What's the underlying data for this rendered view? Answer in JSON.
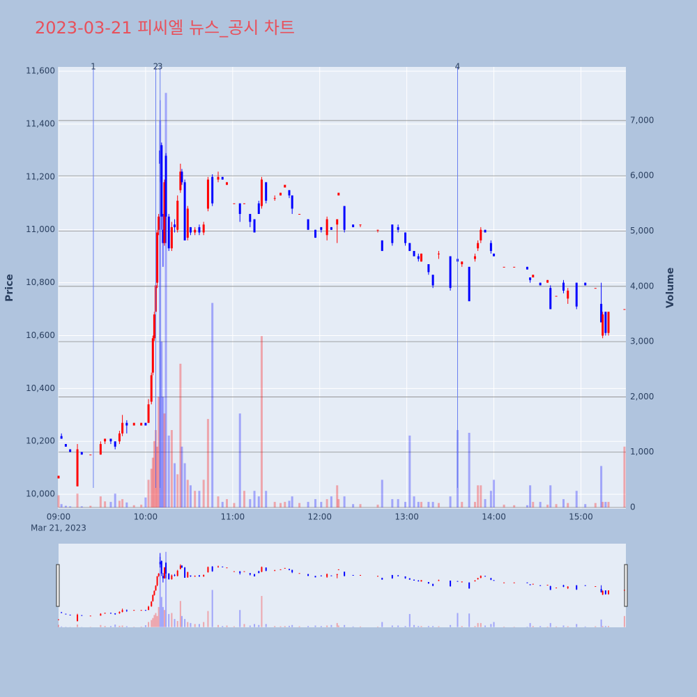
{
  "chart_data": {
    "type": "candlestick",
    "title": "2023-03-21 피씨엘 뉴스_공시 차트",
    "y_title": "Price",
    "y2_title": "Volume",
    "x_date_label": "Mar 21, 2023",
    "increasing_color": "#ff0000",
    "decreasing_color": "#0000ff",
    "marker_color": "#6a7ff0",
    "grid": true,
    "xlim": [
      "2023-03-21 09:00",
      "2023-03-21 15:31"
    ],
    "xticks": [
      {
        "value": "2023-03-21 09:00",
        "label": "09:00"
      },
      {
        "value": "2023-03-21 10:00",
        "label": "10:00"
      },
      {
        "value": "2023-03-21 11:00",
        "label": "11:00"
      },
      {
        "value": "2023-03-21 12:00",
        "label": "12:00"
      },
      {
        "value": "2023-03-21 13:00",
        "label": "13:00"
      },
      {
        "value": "2023-03-21 14:00",
        "label": "14:00"
      },
      {
        "value": "2023-03-21 15:00",
        "label": "15:00"
      }
    ],
    "ylim": [
      9945,
      11616
    ],
    "yticks": [
      {
        "value": 10000,
        "label": "10,000"
      },
      {
        "value": 10200,
        "label": "10,200"
      },
      {
        "value": 10400,
        "label": "10,400"
      },
      {
        "value": 10600,
        "label": "10,600"
      },
      {
        "value": 10800,
        "label": "10,800"
      },
      {
        "value": 11000,
        "label": "11,000"
      },
      {
        "value": 11200,
        "label": "11,200"
      },
      {
        "value": 11400,
        "label": "11,400"
      },
      {
        "value": 11600,
        "label": "11,600"
      }
    ],
    "y2lim": [
      -25,
      7970
    ],
    "y2ticks": [
      0,
      {
        "value": 1000,
        "label": "1,000"
      },
      {
        "value": 2000,
        "label": "2,000"
      },
      {
        "value": 3000,
        "label": "3,000"
      },
      {
        "value": 4000,
        "label": "4,000"
      },
      {
        "value": 5000,
        "label": "5,000"
      },
      {
        "value": 6000,
        "label": "6,000"
      },
      {
        "value": 7000,
        "label": "7,000"
      }
    ],
    "markers": [
      {
        "x": "2023-03-21 09:24",
        "label": "1"
      },
      {
        "x": "2023-03-21 10:07",
        "label": "2"
      },
      {
        "x": "2023-03-21 10:10",
        "label": "3"
      },
      {
        "x": "2023-03-21 13:35",
        "label": "4"
      }
    ],
    "x": [
      "2023-03-21 09:00",
      "2023-03-21 09:02",
      "2023-03-21 09:05",
      "2023-03-21 09:08",
      "2023-03-21 09:13",
      "2023-03-21 09:16",
      "2023-03-21 09:22",
      "2023-03-21 09:29",
      "2023-03-21 09:32",
      "2023-03-21 09:36",
      "2023-03-21 09:39",
      "2023-03-21 09:42",
      "2023-03-21 09:44",
      "2023-03-21 09:47",
      "2023-03-21 09:52",
      "2023-03-21 09:57",
      "2023-03-21 10:00",
      "2023-03-21 10:02",
      "2023-03-21 10:04",
      "2023-03-21 10:05",
      "2023-03-21 10:06",
      "2023-03-21 10:07",
      "2023-03-21 10:08",
      "2023-03-21 10:09",
      "2023-03-21 10:10",
      "2023-03-21 10:11",
      "2023-03-21 10:12",
      "2023-03-21 10:13",
      "2023-03-21 10:14",
      "2023-03-21 10:16",
      "2023-03-21 10:18",
      "2023-03-21 10:20",
      "2023-03-21 10:22",
      "2023-03-21 10:24",
      "2023-03-21 10:25",
      "2023-03-21 10:27",
      "2023-03-21 10:29",
      "2023-03-21 10:31",
      "2023-03-21 10:34",
      "2023-03-21 10:37",
      "2023-03-21 10:40",
      "2023-03-21 10:43",
      "2023-03-21 10:46",
      "2023-03-21 10:50",
      "2023-03-21 10:53",
      "2023-03-21 10:56",
      "2023-03-21 11:01",
      "2023-03-21 11:05",
      "2023-03-21 11:08",
      "2023-03-21 11:12",
      "2023-03-21 11:15",
      "2023-03-21 11:18",
      "2023-03-21 11:20",
      "2023-03-21 11:23",
      "2023-03-21 11:29",
      "2023-03-21 11:33",
      "2023-03-21 11:36",
      "2023-03-21 11:39",
      "2023-03-21 11:41",
      "2023-03-21 11:46",
      "2023-03-21 11:52",
      "2023-03-21 11:57",
      "2023-03-21 12:01",
      "2023-03-21 12:05",
      "2023-03-21 12:08",
      "2023-03-21 12:12",
      "2023-03-21 12:13",
      "2023-03-21 12:17",
      "2023-03-21 12:23",
      "2023-03-21 12:28",
      "2023-03-21 12:40",
      "2023-03-21 12:43",
      "2023-03-21 12:50",
      "2023-03-21 12:54",
      "2023-03-21 12:59",
      "2023-03-21 13:02",
      "2023-03-21 13:05",
      "2023-03-21 13:08",
      "2023-03-21 13:10",
      "2023-03-21 13:15",
      "2023-03-21 13:18",
      "2023-03-21 13:22",
      "2023-03-21 13:30",
      "2023-03-21 13:35",
      "2023-03-21 13:38",
      "2023-03-21 13:43",
      "2023-03-21 13:47",
      "2023-03-21 13:49",
      "2023-03-21 13:51",
      "2023-03-21 13:54",
      "2023-03-21 13:58",
      "2023-03-21 14:00",
      "2023-03-21 14:07",
      "2023-03-21 14:14",
      "2023-03-21 14:23",
      "2023-03-21 14:25",
      "2023-03-21 14:27",
      "2023-03-21 14:32",
      "2023-03-21 14:37",
      "2023-03-21 14:39",
      "2023-03-21 14:43",
      "2023-03-21 14:48",
      "2023-03-21 14:51",
      "2023-03-21 14:57",
      "2023-03-21 15:03",
      "2023-03-21 15:10",
      "2023-03-21 15:14",
      "2023-03-21 15:15",
      "2023-03-21 15:17",
      "2023-03-21 15:19",
      "2023-03-21 15:30"
    ],
    "open": [
      10060,
      10220,
      10190,
      10170,
      10030,
      10160,
      10150,
      10150,
      10200,
      10210,
      10200,
      10200,
      10230,
      10270,
      10260,
      10260,
      10270,
      10270,
      10350,
      10460,
      10590,
      10690,
      10800,
      11000,
      11300,
      11320,
      11000,
      10950,
      11280,
      11050,
      10930,
      11020,
      11000,
      11150,
      11220,
      11180,
      10970,
      11010,
      10990,
      11010,
      10990,
      11080,
      11200,
      11190,
      11200,
      11170,
      11100,
      11100,
      11100,
      11060,
      11040,
      11100,
      11090,
      11180,
      11120,
      11130,
      11160,
      11150,
      11130,
      11060,
      11040,
      11000,
      11010,
      10980,
      11010,
      11020,
      11130,
      11090,
      11020,
      11020,
      11000,
      10960,
      11020,
      11010,
      10990,
      10950,
      10920,
      10900,
      10880,
      10870,
      10830,
      10910,
      10900,
      10890,
      10870,
      10860,
      10890,
      10930,
      10960,
      11000,
      10950,
      10910,
      10860,
      10860,
      10860,
      10820,
      10820,
      10800,
      10800,
      10780,
      10750,
      10800,
      10740,
      10800,
      10800,
      10780,
      10720,
      10600,
      10690,
      10610,
      10700
    ],
    "high": [
      10070,
      10230,
      10190,
      10170,
      10190,
      10160,
      10150,
      10200,
      10210,
      10210,
      10200,
      10240,
      10300,
      10280,
      10270,
      10270,
      10270,
      10360,
      10460,
      10600,
      10690,
      10800,
      11000,
      11060,
      11490,
      11330,
      11060,
      11190,
      11290,
      11060,
      11030,
      11040,
      11130,
      11250,
      11230,
      11190,
      11090,
      11010,
      11010,
      11020,
      11030,
      11200,
      11210,
      11220,
      11200,
      11180,
      11100,
      11100,
      11100,
      11060,
      11040,
      11110,
      11200,
      11180,
      11130,
      11140,
      11170,
      11150,
      11130,
      11060,
      11040,
      11000,
      11010,
      11050,
      11010,
      11040,
      11140,
      11090,
      11020,
      11020,
      11000,
      10960,
      11020,
      11020,
      10990,
      10950,
      10920,
      10910,
      10910,
      10870,
      10830,
      10920,
      10900,
      10890,
      10880,
      10860,
      10910,
      10960,
      11010,
      11000,
      10960,
      10910,
      10860,
      10860,
      10860,
      10820,
      10830,
      10800,
      10810,
      10790,
      10750,
      10810,
      10780,
      10800,
      10800,
      10780,
      10800,
      10690,
      10690,
      10690,
      10700
    ],
    "low": [
      10060,
      10210,
      10180,
      10160,
      10030,
      10150,
      10150,
      10150,
      10190,
      10190,
      10170,
      10190,
      10220,
      10230,
      10260,
      10260,
      10260,
      10270,
      10340,
      10450,
      10580,
      10680,
      10780,
      10980,
      11180,
      11000,
      10860,
      10940,
      10950,
      10920,
      10920,
      10990,
      10990,
      11140,
      11170,
      10960,
      10960,
      10980,
      10980,
      10980,
      10980,
      11070,
      11090,
      11180,
      11190,
      11170,
      11100,
      11030,
      11100,
      11010,
      10990,
      11060,
      11080,
      11100,
      11110,
      11130,
      11160,
      11120,
      11060,
      11060,
      11000,
      10970,
      10990,
      10960,
      11000,
      10950,
      11130,
      10990,
      11010,
      11010,
      10990,
      10920,
      10940,
      10990,
      10940,
      10920,
      10900,
      10880,
      10880,
      10830,
      10780,
      10890,
      10770,
      10880,
      10860,
      10730,
      10880,
      10920,
      10950,
      10990,
      10910,
      10900,
      10860,
      10860,
      10850,
      10800,
      10820,
      10790,
      10800,
      10700,
      10750,
      10760,
      10720,
      10700,
      10790,
      10780,
      10650,
      10590,
      10600,
      10600,
      10700
    ],
    "close": [
      10070,
      10210,
      10180,
      10160,
      10170,
      10150,
      10150,
      10190,
      10210,
      10200,
      10180,
      10230,
      10270,
      10260,
      10270,
      10270,
      10260,
      10340,
      10450,
      10590,
      10680,
      10790,
      10990,
      11050,
      11250,
      11050,
      10950,
      11180,
      11050,
      10930,
      11010,
      11010,
      11110,
      11220,
      11180,
      10960,
      11080,
      10990,
      11000,
      10990,
      11020,
      11190,
      11100,
      11200,
      11190,
      11180,
      11100,
      11060,
      11100,
      11030,
      10990,
      11060,
      11190,
      11110,
      11120,
      11140,
      11170,
      11130,
      11080,
      11060,
      11000,
      10970,
      11000,
      11040,
      11000,
      11040,
      11140,
      11000,
      11010,
      11020,
      11000,
      10920,
      10950,
      11000,
      10950,
      10920,
      10900,
      10890,
      10910,
      10840,
      10790,
      10910,
      10780,
      10880,
      10880,
      10730,
      10900,
      10950,
      11000,
      10990,
      10920,
      10900,
      10860,
      10860,
      10850,
      10810,
      10830,
      10790,
      10810,
      10700,
      10750,
      10770,
      10770,
      10710,
      10790,
      10780,
      10650,
      10680,
      10610,
      10690,
      10700
    ],
    "volume": [
      220,
      60,
      30,
      20,
      250,
      20,
      30,
      200,
      110,
      100,
      250,
      120,
      150,
      90,
      40,
      50,
      180,
      500,
      700,
      900,
      1200,
      1400,
      1100,
      2000,
      7000,
      3000,
      2000,
      1700,
      7500,
      1300,
      1400,
      800,
      600,
      2600,
      1100,
      800,
      500,
      400,
      300,
      300,
      500,
      1600,
      3700,
      200,
      100,
      150,
      80,
      1700,
      300,
      150,
      300,
      200,
      3100,
      300,
      100,
      80,
      100,
      120,
      200,
      80,
      100,
      150,
      100,
      150,
      200,
      400,
      150,
      200,
      60,
      60,
      50,
      500,
      150,
      150,
      100,
      1300,
      200,
      100,
      100,
      100,
      100,
      80,
      200,
      1400,
      100,
      1350,
      100,
      400,
      400,
      150,
      300,
      500,
      50,
      40,
      40,
      400,
      100,
      100,
      50,
      400,
      60,
      150,
      80,
      300,
      60,
      80,
      750,
      100,
      100,
      100,
      1100
    ]
  }
}
